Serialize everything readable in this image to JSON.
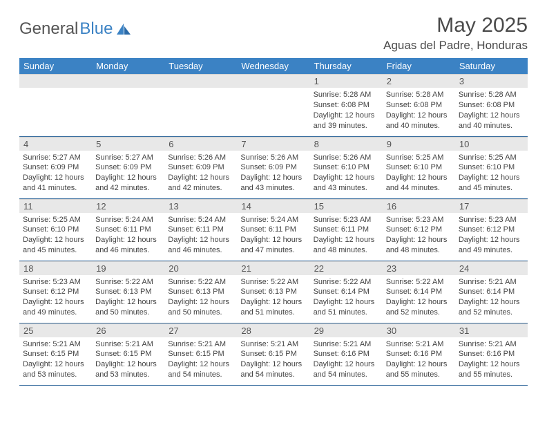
{
  "logo": {
    "text_gray": "General",
    "text_blue": "Blue",
    "icon_color": "#3b82c4"
  },
  "title": "May 2025",
  "location": "Aguas del Padre, Honduras",
  "colors": {
    "header_bg": "#3b82c4",
    "header_text": "#ffffff",
    "daynum_bg": "#e8e8e8",
    "border": "#3b6fa0",
    "text": "#444444"
  },
  "day_headers": [
    "Sunday",
    "Monday",
    "Tuesday",
    "Wednesday",
    "Thursday",
    "Friday",
    "Saturday"
  ],
  "weeks": [
    [
      {
        "blank": true
      },
      {
        "blank": true
      },
      {
        "blank": true
      },
      {
        "blank": true
      },
      {
        "num": "1",
        "sunrise": "5:28 AM",
        "sunset": "6:08 PM",
        "daylight": "12 hours and 39 minutes."
      },
      {
        "num": "2",
        "sunrise": "5:28 AM",
        "sunset": "6:08 PM",
        "daylight": "12 hours and 40 minutes."
      },
      {
        "num": "3",
        "sunrise": "5:28 AM",
        "sunset": "6:08 PM",
        "daylight": "12 hours and 40 minutes."
      }
    ],
    [
      {
        "num": "4",
        "sunrise": "5:27 AM",
        "sunset": "6:09 PM",
        "daylight": "12 hours and 41 minutes."
      },
      {
        "num": "5",
        "sunrise": "5:27 AM",
        "sunset": "6:09 PM",
        "daylight": "12 hours and 42 minutes."
      },
      {
        "num": "6",
        "sunrise": "5:26 AM",
        "sunset": "6:09 PM",
        "daylight": "12 hours and 42 minutes."
      },
      {
        "num": "7",
        "sunrise": "5:26 AM",
        "sunset": "6:09 PM",
        "daylight": "12 hours and 43 minutes."
      },
      {
        "num": "8",
        "sunrise": "5:26 AM",
        "sunset": "6:10 PM",
        "daylight": "12 hours and 43 minutes."
      },
      {
        "num": "9",
        "sunrise": "5:25 AM",
        "sunset": "6:10 PM",
        "daylight": "12 hours and 44 minutes."
      },
      {
        "num": "10",
        "sunrise": "5:25 AM",
        "sunset": "6:10 PM",
        "daylight": "12 hours and 45 minutes."
      }
    ],
    [
      {
        "num": "11",
        "sunrise": "5:25 AM",
        "sunset": "6:10 PM",
        "daylight": "12 hours and 45 minutes."
      },
      {
        "num": "12",
        "sunrise": "5:24 AM",
        "sunset": "6:11 PM",
        "daylight": "12 hours and 46 minutes."
      },
      {
        "num": "13",
        "sunrise": "5:24 AM",
        "sunset": "6:11 PM",
        "daylight": "12 hours and 46 minutes."
      },
      {
        "num": "14",
        "sunrise": "5:24 AM",
        "sunset": "6:11 PM",
        "daylight": "12 hours and 47 minutes."
      },
      {
        "num": "15",
        "sunrise": "5:23 AM",
        "sunset": "6:11 PM",
        "daylight": "12 hours and 48 minutes."
      },
      {
        "num": "16",
        "sunrise": "5:23 AM",
        "sunset": "6:12 PM",
        "daylight": "12 hours and 48 minutes."
      },
      {
        "num": "17",
        "sunrise": "5:23 AM",
        "sunset": "6:12 PM",
        "daylight": "12 hours and 49 minutes."
      }
    ],
    [
      {
        "num": "18",
        "sunrise": "5:23 AM",
        "sunset": "6:12 PM",
        "daylight": "12 hours and 49 minutes."
      },
      {
        "num": "19",
        "sunrise": "5:22 AM",
        "sunset": "6:13 PM",
        "daylight": "12 hours and 50 minutes."
      },
      {
        "num": "20",
        "sunrise": "5:22 AM",
        "sunset": "6:13 PM",
        "daylight": "12 hours and 50 minutes."
      },
      {
        "num": "21",
        "sunrise": "5:22 AM",
        "sunset": "6:13 PM",
        "daylight": "12 hours and 51 minutes."
      },
      {
        "num": "22",
        "sunrise": "5:22 AM",
        "sunset": "6:14 PM",
        "daylight": "12 hours and 51 minutes."
      },
      {
        "num": "23",
        "sunrise": "5:22 AM",
        "sunset": "6:14 PM",
        "daylight": "12 hours and 52 minutes."
      },
      {
        "num": "24",
        "sunrise": "5:21 AM",
        "sunset": "6:14 PM",
        "daylight": "12 hours and 52 minutes."
      }
    ],
    [
      {
        "num": "25",
        "sunrise": "5:21 AM",
        "sunset": "6:15 PM",
        "daylight": "12 hours and 53 minutes."
      },
      {
        "num": "26",
        "sunrise": "5:21 AM",
        "sunset": "6:15 PM",
        "daylight": "12 hours and 53 minutes."
      },
      {
        "num": "27",
        "sunrise": "5:21 AM",
        "sunset": "6:15 PM",
        "daylight": "12 hours and 54 minutes."
      },
      {
        "num": "28",
        "sunrise": "5:21 AM",
        "sunset": "6:15 PM",
        "daylight": "12 hours and 54 minutes."
      },
      {
        "num": "29",
        "sunrise": "5:21 AM",
        "sunset": "6:16 PM",
        "daylight": "12 hours and 54 minutes."
      },
      {
        "num": "30",
        "sunrise": "5:21 AM",
        "sunset": "6:16 PM",
        "daylight": "12 hours and 55 minutes."
      },
      {
        "num": "31",
        "sunrise": "5:21 AM",
        "sunset": "6:16 PM",
        "daylight": "12 hours and 55 minutes."
      }
    ]
  ],
  "labels": {
    "sunrise": "Sunrise:",
    "sunset": "Sunset:",
    "daylight": "Daylight:"
  }
}
